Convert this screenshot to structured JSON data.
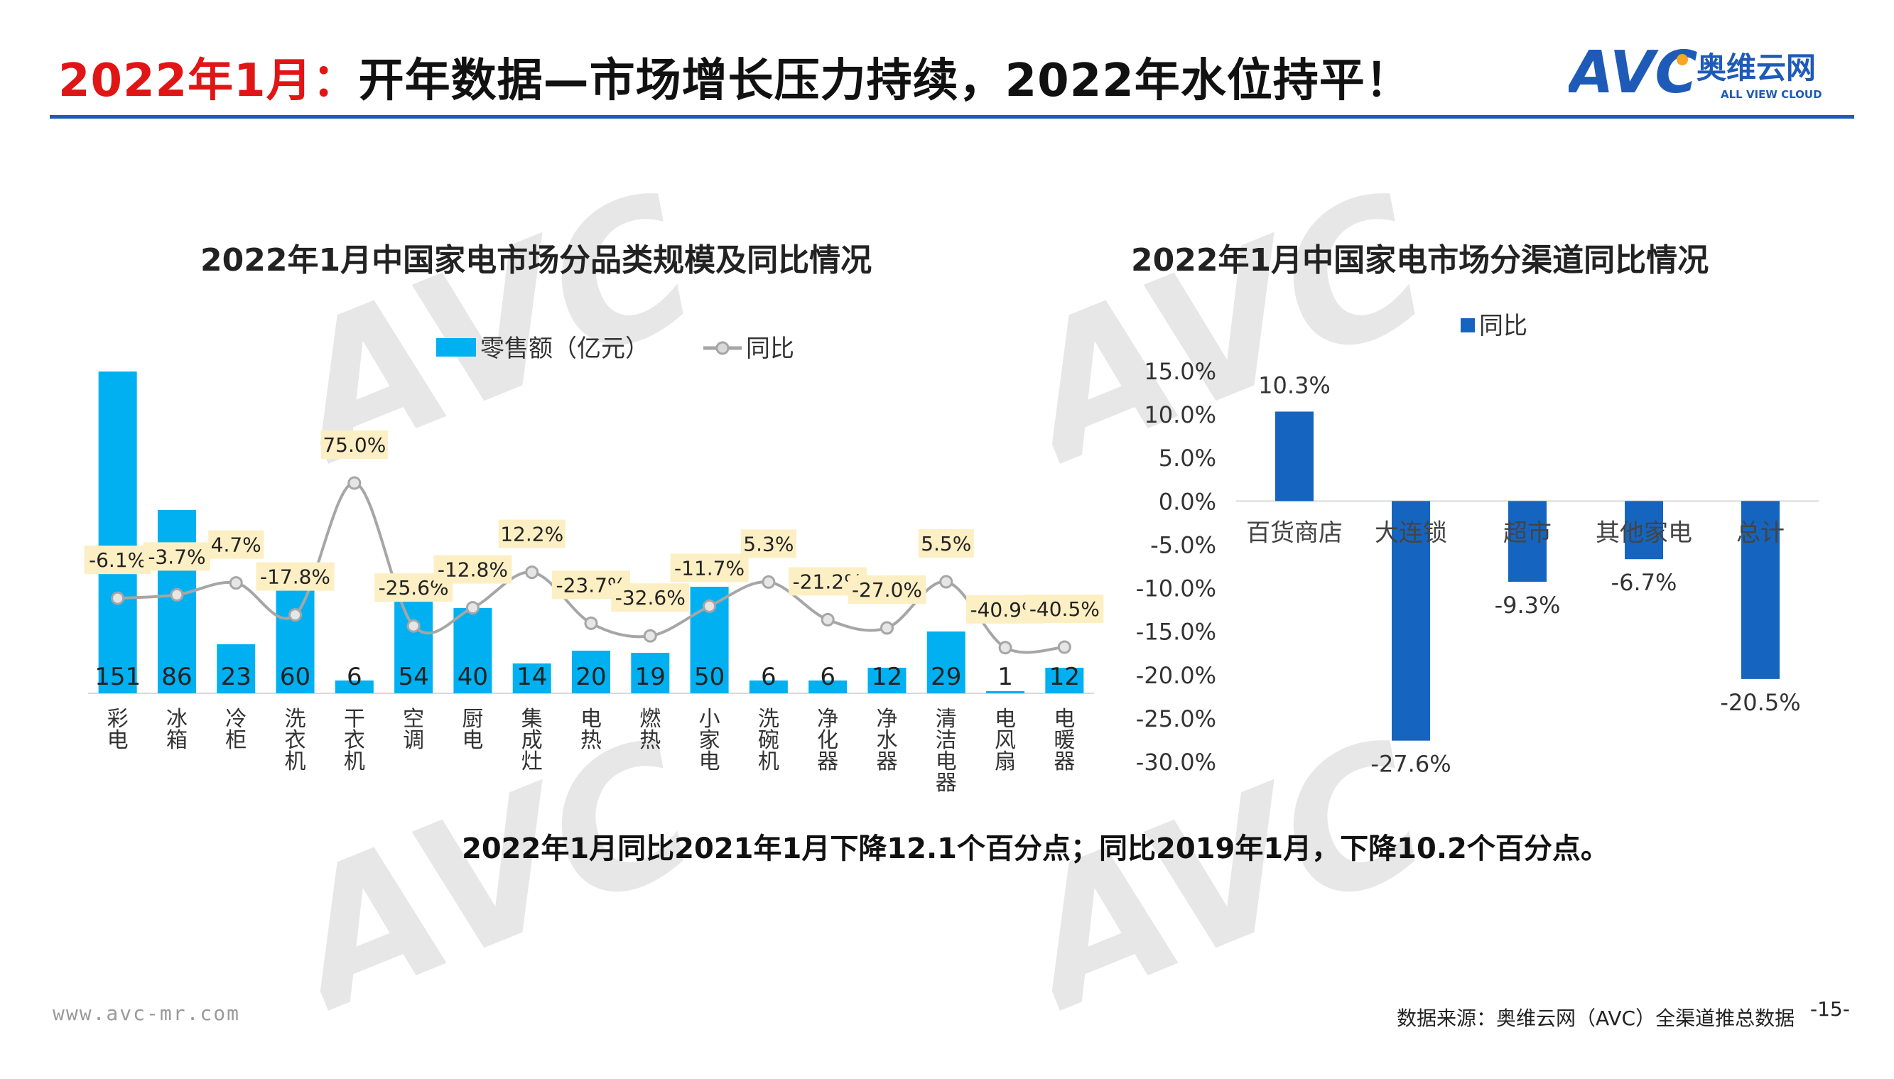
{
  "header": {
    "title_prefix": "2022年1月：",
    "title_main": "开年数据—市场增长压力持续，2022年水位持平！",
    "logo_letters": "AVC",
    "logo_cn": "奥维云网",
    "logo_en": "ALL VIEW CLOUD"
  },
  "colors": {
    "accent_red": "#e01515",
    "rule_blue": "#1e5bb8",
    "bar_cyan": "#00b0f0",
    "bar_dark_blue": "#1565c0",
    "line_gray": "#a6a6a6",
    "label_bg": "#fcefc4"
  },
  "chart_data": [
    {
      "type": "bar",
      "title": "2022年1月中国家电市场分品类规模及同比情况",
      "categories": [
        "彩电",
        "冰箱",
        "冷柜",
        "洗衣机",
        "干衣机",
        "空调",
        "厨电",
        "集成灶",
        "电热",
        "燃热",
        "小家电",
        "洗碗机",
        "净化器",
        "净水器",
        "清洁电器",
        "电风扇",
        "电暖器"
      ],
      "series": [
        {
          "name": "零售额（亿元）",
          "type": "bar",
          "values": [
            151,
            86,
            23,
            60,
            6,
            54,
            40,
            14,
            20,
            19,
            50,
            6,
            6,
            12,
            29,
            1,
            12
          ],
          "labels": [
            "151",
            "86",
            "23",
            "60",
            "6",
            "54",
            "40",
            "14",
            "20",
            "19",
            "50",
            "6",
            "6",
            "12",
            "29",
            "1",
            "12"
          ]
        },
        {
          "name": "同比",
          "type": "line",
          "values": [
            -6.1,
            -3.7,
            4.7,
            -17.8,
            75.0,
            -25.6,
            -12.8,
            12.2,
            -23.7,
            -32.6,
            -11.7,
            5.3,
            -21.2,
            -27.0,
            5.5,
            -40.9,
            -40.5
          ],
          "labels": [
            "-6.1%",
            "-3.7%",
            "4.7%",
            "-17.8%",
            "75.0%",
            "-25.6%",
            "-12.8%",
            "12.2%",
            "-23.7%",
            "-32.6%",
            "-11.7%",
            "5.3%",
            "-21.2%",
            "-27.0%",
            "5.5%",
            "-40.9%",
            "-40.5%"
          ]
        }
      ],
      "legend_position": "top"
    },
    {
      "type": "bar",
      "title": "2022年1月中国家电市场分渠道同比情况",
      "categories": [
        "百货商店",
        "大连锁",
        "超市",
        "其他家电",
        "总计"
      ],
      "series": [
        {
          "name": "同比",
          "values": [
            10.3,
            -27.6,
            -9.3,
            -6.7,
            -20.5
          ],
          "labels": [
            "10.3%",
            "-27.6%",
            "-9.3%",
            "-6.7%",
            "-20.5%"
          ]
        }
      ],
      "y_ticks": [
        "15.0%",
        "10.0%",
        "5.0%",
        "0.0%",
        "-5.0%",
        "-10.0%",
        "-15.0%",
        "-20.0%",
        "-25.0%",
        "-30.0%"
      ],
      "ylim": [
        -30,
        15
      ],
      "legend_position": "top"
    }
  ],
  "footnote": "2022年1月同比2021年1月下降12.1个百分点；同比2019年1月，下降10.2个百分点。",
  "footer": {
    "website": "www.avc-mr.com",
    "source": "数据来源：奥维云网（AVC）全渠道推总数据",
    "page": "-15-"
  }
}
